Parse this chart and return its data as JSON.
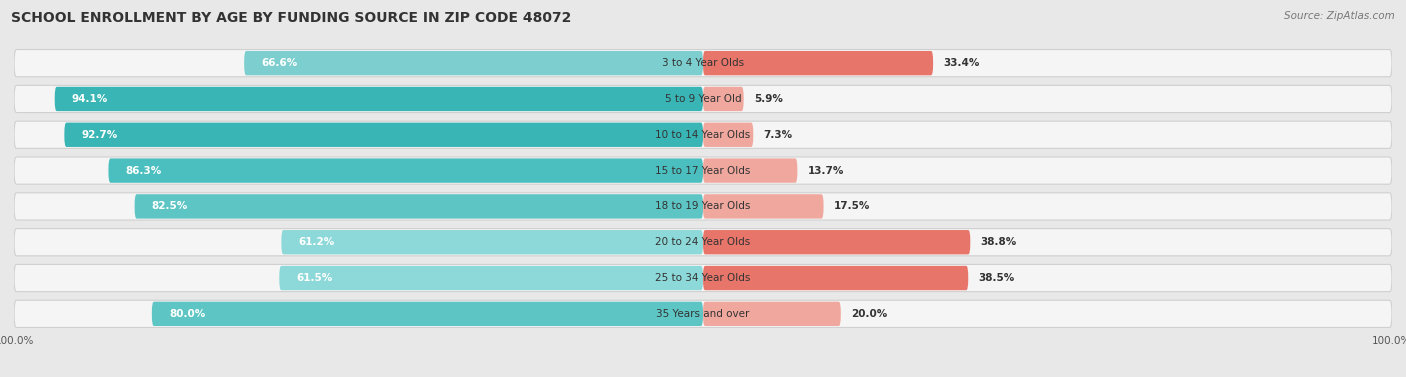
{
  "title": "SCHOOL ENROLLMENT BY AGE BY FUNDING SOURCE IN ZIP CODE 48072",
  "source": "Source: ZipAtlas.com",
  "categories": [
    "3 to 4 Year Olds",
    "5 to 9 Year Old",
    "10 to 14 Year Olds",
    "15 to 17 Year Olds",
    "18 to 19 Year Olds",
    "20 to 24 Year Olds",
    "25 to 34 Year Olds",
    "35 Years and over"
  ],
  "public_pct": [
    66.6,
    94.1,
    92.7,
    86.3,
    82.5,
    61.2,
    61.5,
    80.0
  ],
  "private_pct": [
    33.4,
    5.9,
    7.3,
    13.7,
    17.5,
    38.8,
    38.5,
    20.0
  ],
  "public_colors": [
    "#7dcfcf",
    "#3ab5b5",
    "#3ab5b5",
    "#4bbfbf",
    "#5ec5c5",
    "#8dd8d8",
    "#8dd8d8",
    "#5ec5c5"
  ],
  "private_colors": [
    "#e8756a",
    "#f0a89e",
    "#f0a89e",
    "#f0a89e",
    "#f0a89e",
    "#e8756a",
    "#e8756a",
    "#f0a89e"
  ],
  "legend_pub_color": "#5bc8c8",
  "legend_priv_color": "#e8756a",
  "bg_color": "#e8e8e8",
  "bar_bg_color": "#f5f5f5",
  "row_sep_color": "#d0d0d0",
  "title_fontsize": 10,
  "source_fontsize": 7.5,
  "label_fontsize": 7.5,
  "pct_fontsize": 7.5,
  "legend_fontsize": 8,
  "axis_label_fontsize": 7.5
}
